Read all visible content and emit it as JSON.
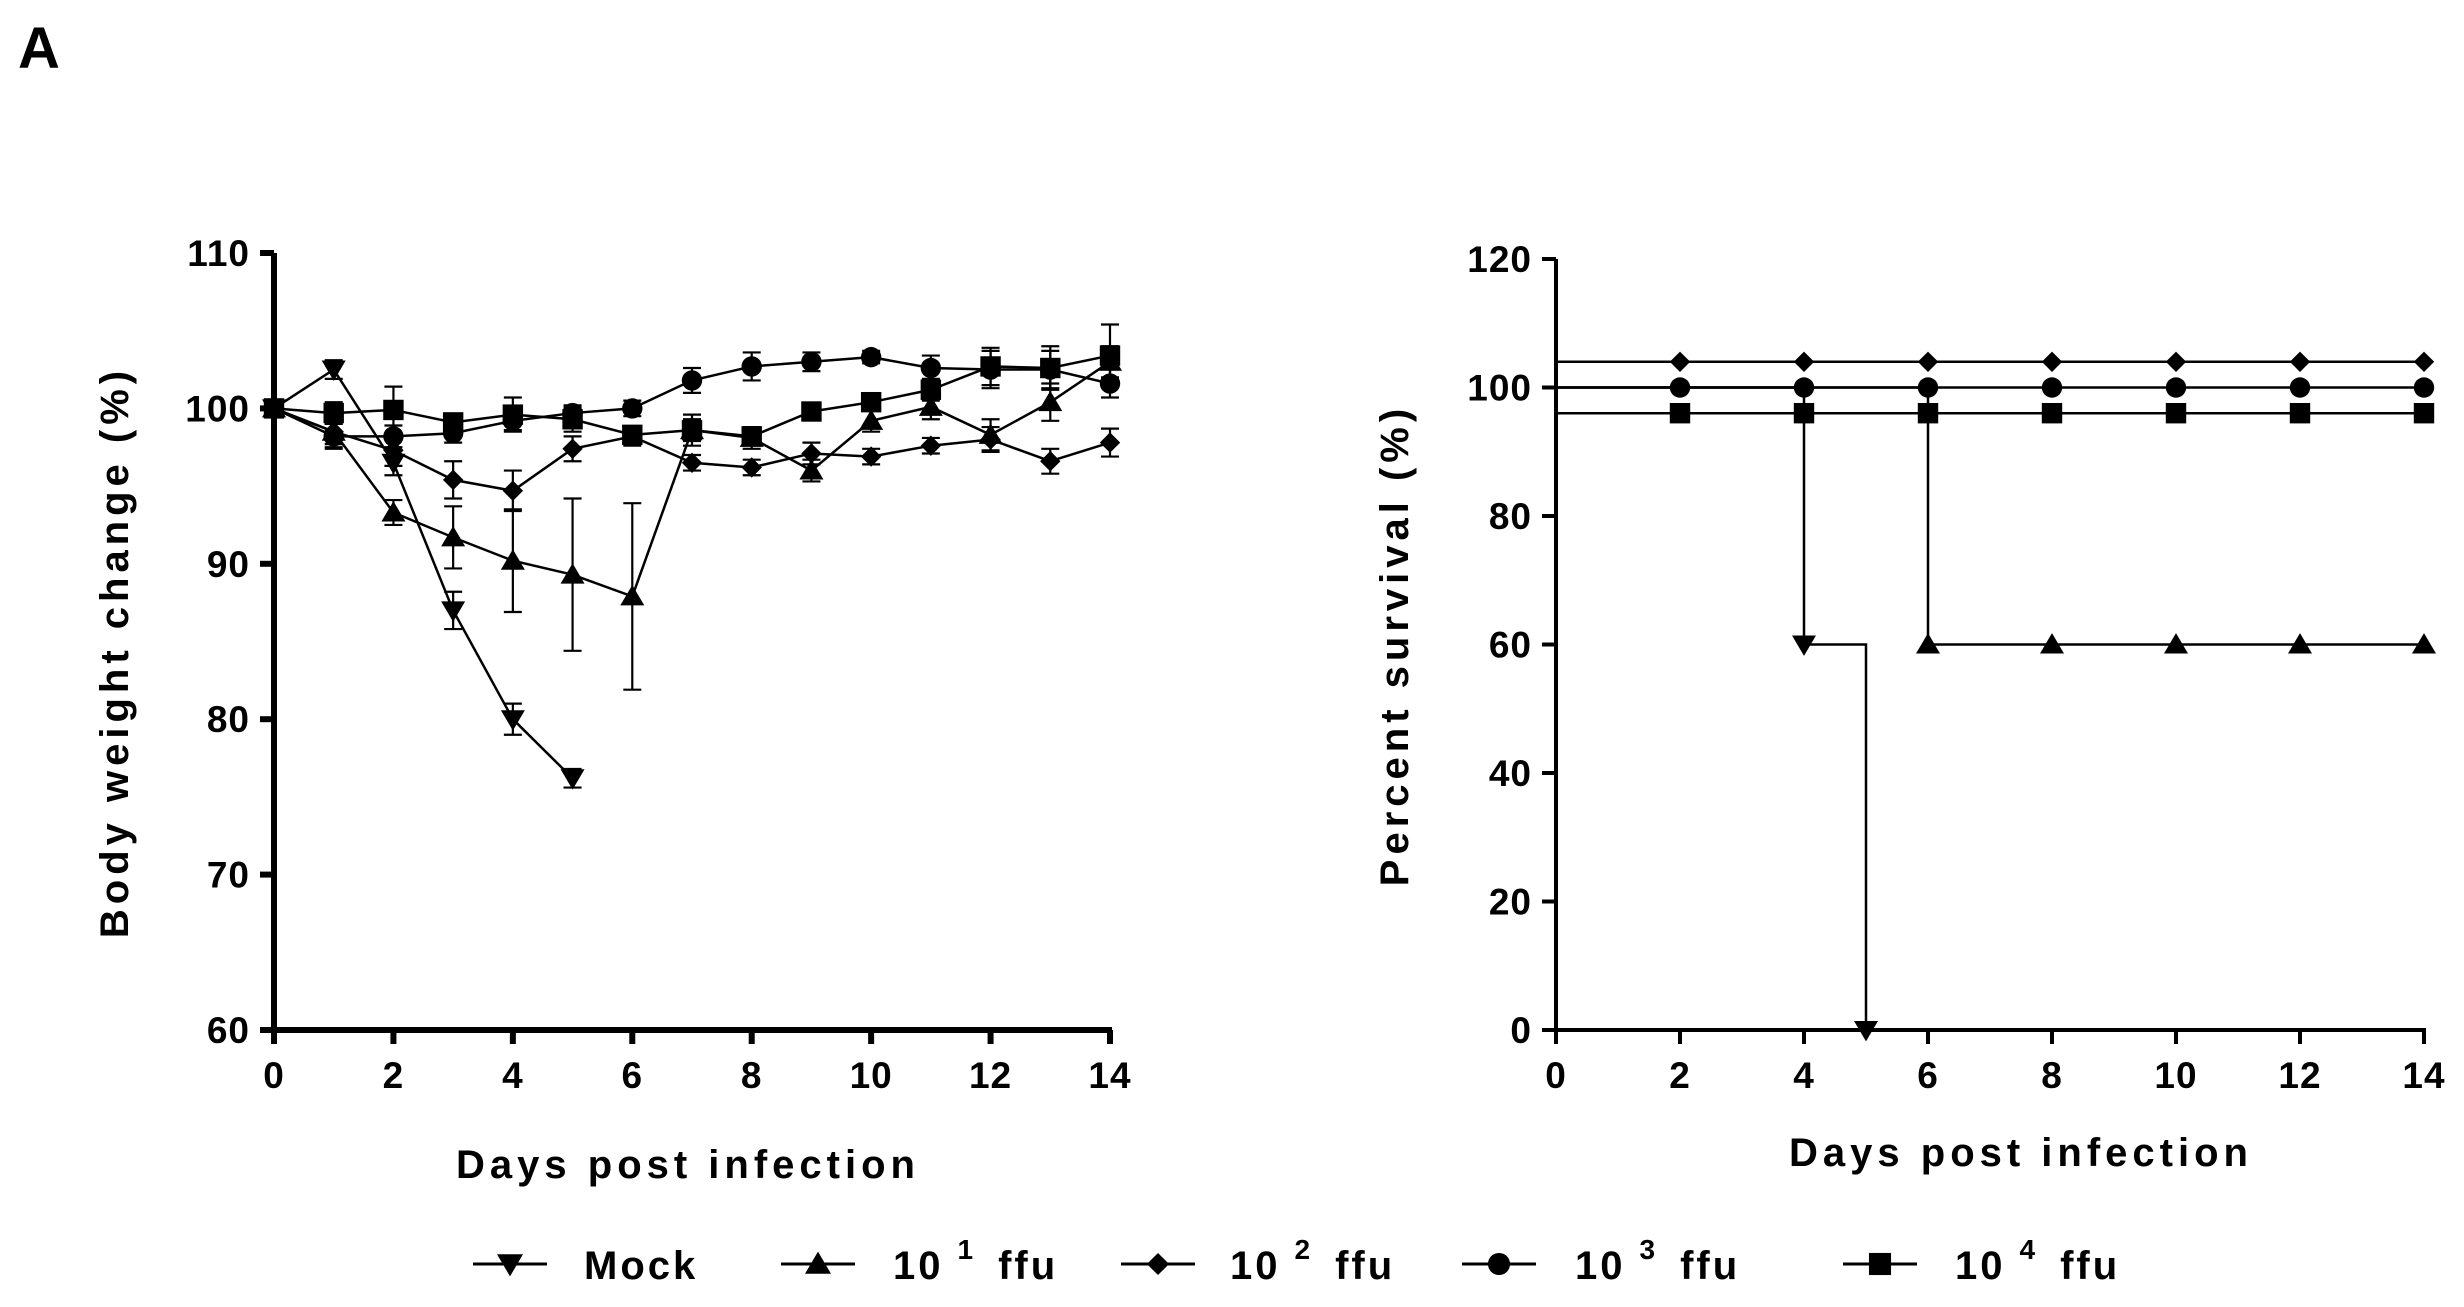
{
  "panel_label": "A",
  "chart_data": [
    {
      "type": "line",
      "xlabel": "Days post infection",
      "ylabel": "Body weight change  (%)",
      "xlim": [
        0,
        14
      ],
      "ylim": [
        60,
        110
      ],
      "xticks": [
        0,
        2,
        4,
        6,
        8,
        10,
        12,
        14
      ],
      "yticks": [
        60,
        70,
        80,
        90,
        100,
        110
      ],
      "error_bars": true,
      "series": [
        {
          "name": "Mock",
          "marker": "triangle-down",
          "x": [
            0,
            1,
            2,
            3,
            4,
            5
          ],
          "y": [
            100,
            102.5,
            96.5,
            87,
            80,
            76.2
          ],
          "err": [
            0,
            0.6,
            0.8,
            1.2,
            1.0,
            0.6
          ]
        },
        {
          "name": "10^1 ffu",
          "marker": "triangle-up",
          "x": [
            0,
            1,
            2,
            3,
            4,
            5,
            6,
            7,
            8,
            9,
            10,
            11,
            12,
            13,
            14
          ],
          "y": [
            100,
            98.5,
            93.3,
            91.7,
            90.2,
            89.3,
            87.9,
            98.6,
            98.1,
            96,
            99.2,
            100.1,
            98.3,
            100.4,
            103
          ],
          "err": [
            0,
            1,
            0.8,
            2,
            3.3,
            4.9,
            6,
            1,
            0.7,
            0.7,
            0.7,
            0.8,
            1,
            1.2,
            1
          ]
        },
        {
          "name": "10^2 ffu",
          "marker": "diamond",
          "x": [
            0,
            1,
            2,
            3,
            4,
            5,
            6,
            7,
            8,
            9,
            10,
            11,
            12,
            13,
            14
          ],
          "y": [
            100,
            98.5,
            97.3,
            95.4,
            94.7,
            97.4,
            98.2,
            96.5,
            96.2,
            97.1,
            96.9,
            97.6,
            98,
            96.6,
            97.8
          ],
          "err": [
            0,
            0.8,
            1,
            1.2,
            1.3,
            0.8,
            0.6,
            0.5,
            0.5,
            0.7,
            0.5,
            0.5,
            0.8,
            0.8,
            0.9
          ]
        },
        {
          "name": "10^3 ffu",
          "marker": "circle",
          "x": [
            0,
            1,
            2,
            3,
            4,
            5,
            6,
            7,
            8,
            9,
            10,
            11,
            12,
            13,
            14
          ],
          "y": [
            100,
            98.2,
            98.2,
            98.4,
            99.2,
            99.7,
            100,
            101.8,
            102.7,
            103,
            103.3,
            102.6,
            102.5,
            102.5,
            101.6
          ],
          "err": [
            0,
            0.8,
            0.7,
            0.6,
            0.6,
            0.5,
            0.5,
            0.8,
            0.9,
            0.6,
            0.4,
            0.8,
            1.2,
            1.2,
            0.9
          ]
        },
        {
          "name": "10^4 ffu",
          "marker": "square",
          "x": [
            0,
            1,
            2,
            3,
            4,
            5,
            6,
            7,
            8,
            9,
            10,
            11,
            12,
            13,
            14
          ],
          "y": [
            100,
            99.7,
            99.9,
            99.1,
            99.6,
            99.3,
            98.3,
            98.6,
            98.2,
            99.8,
            100.4,
            101.2,
            102.7,
            102.6,
            103.4
          ],
          "err": [
            0,
            0.7,
            1.5,
            0.5,
            1.1,
            0.8,
            0.5,
            0.7,
            0.5,
            0.5,
            0.5,
            0.7,
            1.2,
            1.4,
            2
          ]
        }
      ]
    },
    {
      "type": "line",
      "subtype": "step",
      "xlabel": "Days post infection",
      "ylabel": "Percent survival (%)",
      "xlim": [
        0,
        14
      ],
      "ylim": [
        0,
        120
      ],
      "xticks": [
        0,
        2,
        4,
        6,
        8,
        10,
        12,
        14
      ],
      "yticks": [
        0,
        20,
        40,
        60,
        80,
        100,
        120
      ],
      "series": [
        {
          "name": "Mock",
          "marker": "triangle-down",
          "display_offset": 0,
          "x": [
            0,
            4,
            5
          ],
          "y": [
            100,
            60,
            0
          ],
          "marker_x": [
            4,
            5
          ]
        },
        {
          "name": "10^1 ffu",
          "marker": "triangle-up",
          "display_offset": 0,
          "x": [
            0,
            6,
            14
          ],
          "y": [
            100,
            60,
            60
          ],
          "marker_x": [
            6,
            8,
            10,
            12,
            14
          ]
        },
        {
          "name": "10^2 ffu",
          "marker": "diamond",
          "display_offset": 4,
          "x": [
            0,
            14
          ],
          "y": [
            100,
            100
          ],
          "marker_x": [
            2,
            4,
            6,
            8,
            10,
            12,
            14
          ]
        },
        {
          "name": "10^3 ffu",
          "marker": "circle",
          "display_offset": 0,
          "x": [
            0,
            14
          ],
          "y": [
            100,
            100
          ],
          "marker_x": [
            2,
            4,
            6,
            8,
            10,
            12,
            14
          ]
        },
        {
          "name": "10^4 ffu",
          "marker": "square",
          "display_offset": -4,
          "x": [
            0,
            14
          ],
          "y": [
            100,
            100
          ],
          "marker_x": [
            2,
            4,
            6,
            8,
            10,
            12,
            14
          ]
        }
      ]
    }
  ],
  "legend": [
    {
      "marker": "triangle-down",
      "text": "Mock"
    },
    {
      "marker": "triangle-up",
      "base": "10",
      "exp": "1",
      "unit": "ffu"
    },
    {
      "marker": "diamond",
      "base": "10",
      "exp": "2",
      "unit": "ffu"
    },
    {
      "marker": "circle",
      "base": "10",
      "exp": "3",
      "unit": "ffu"
    },
    {
      "marker": "square",
      "base": "10",
      "exp": "4",
      "unit": "ffu"
    }
  ]
}
